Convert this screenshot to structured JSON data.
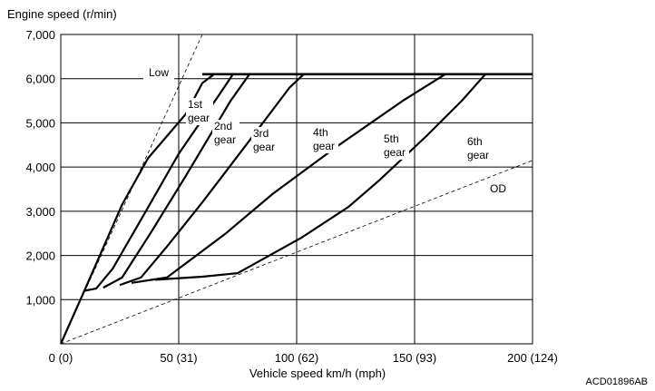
{
  "chart_data": {
    "type": "line",
    "ylabel": "Engine speed (r/min)",
    "xlabel": "Vehicle speed  km/h (mph)",
    "xlim": [
      0,
      200
    ],
    "ylim": [
      0,
      7000
    ],
    "x_ticks": [
      0,
      50,
      100,
      150,
      200
    ],
    "x_tick_labels": [
      "0 (0)",
      "50 (31)",
      "100 (62)",
      "150 (93)",
      "200 (124)"
    ],
    "y_ticks": [
      1000,
      2000,
      3000,
      4000,
      5000,
      6000,
      7000
    ],
    "y_tick_labels": [
      "1,000",
      "2,000",
      "3,000",
      "4,000",
      "5,000",
      "6,000",
      "7,000"
    ],
    "grid": true,
    "figure_code": "ACD01896AB",
    "reference_lines": [
      {
        "name": "Low",
        "points": [
          [
            0,
            0
          ],
          [
            60,
            7000
          ]
        ]
      },
      {
        "name": "OD",
        "points": [
          [
            0,
            0
          ],
          [
            200,
            4150
          ]
        ]
      }
    ],
    "series": [
      {
        "name": "1st gear",
        "label_lines": [
          "1st",
          "gear"
        ],
        "points": [
          [
            0,
            0
          ],
          [
            10,
            1200
          ],
          [
            26,
            3150
          ],
          [
            37,
            4200
          ],
          [
            53,
            5200
          ],
          [
            60,
            5900
          ],
          [
            65,
            6100
          ]
        ]
      },
      {
        "name": "2nd gear",
        "label_lines": [
          "2nd",
          "gear"
        ],
        "points": [
          [
            10,
            1200
          ],
          [
            15,
            1250
          ],
          [
            22,
            1700
          ],
          [
            35,
            2900
          ],
          [
            50,
            4300
          ],
          [
            68,
            5700
          ],
          [
            73,
            6100
          ]
        ]
      },
      {
        "name": "3rd gear",
        "label_lines": [
          "3rd",
          "gear"
        ],
        "points": [
          [
            18,
            1270
          ],
          [
            26,
            1500
          ],
          [
            38,
            2500
          ],
          [
            53,
            3800
          ],
          [
            72,
            5500
          ],
          [
            80,
            6100
          ]
        ]
      },
      {
        "name": "4th gear",
        "label_lines": [
          "4th",
          "gear"
        ],
        "points": [
          [
            25,
            1330
          ],
          [
            34,
            1500
          ],
          [
            45,
            2200
          ],
          [
            60,
            3200
          ],
          [
            80,
            4600
          ],
          [
            97,
            5800
          ],
          [
            103,
            6100
          ]
        ]
      },
      {
        "name": "5th gear",
        "label_lines": [
          "5th",
          "gear"
        ],
        "points": [
          [
            30,
            1380
          ],
          [
            45,
            1500
          ],
          [
            70,
            2500
          ],
          [
            90,
            3400
          ],
          [
            118,
            4500
          ],
          [
            145,
            5500
          ],
          [
            163,
            6100
          ]
        ]
      },
      {
        "name": "6th gear",
        "label_lines": [
          "6th",
          "gear"
        ],
        "points": [
          [
            40,
            1450
          ],
          [
            60,
            1520
          ],
          [
            75,
            1600
          ],
          [
            102,
            2400
          ],
          [
            122,
            3100
          ],
          [
            135,
            3700
          ],
          [
            155,
            4700
          ],
          [
            170,
            5500
          ],
          [
            180,
            6100
          ]
        ]
      }
    ],
    "max_rpm_line": {
      "value": 6100,
      "x_range": [
        60,
        200
      ]
    },
    "low_label": "Low",
    "od_label": "OD"
  }
}
